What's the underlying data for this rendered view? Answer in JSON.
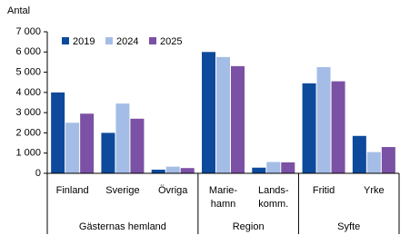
{
  "chart_data": {
    "type": "bar",
    "y_label": "Antal",
    "categories": [
      [
        "Finland"
      ],
      [
        "Sverige"
      ],
      [
        "Övriga"
      ],
      [
        "Marie-",
        "hamn"
      ],
      [
        "Lands-",
        "komm."
      ],
      [
        "Fritid"
      ],
      [
        "Yrke"
      ]
    ],
    "groups": [
      {
        "name": "Gästernas hemland",
        "size": 3
      },
      {
        "name": "Region",
        "size": 2
      },
      {
        "name": "Syfte",
        "size": 2
      }
    ],
    "series": [
      {
        "name": "2019",
        "color": "#0d4a9c",
        "values": [
          4000,
          2000,
          180,
          6000,
          280,
          4450,
          1850
        ]
      },
      {
        "name": "2024",
        "color": "#a4bde6",
        "values": [
          2500,
          3450,
          330,
          5750,
          560,
          5250,
          1050
        ]
      },
      {
        "name": "2025",
        "color": "#7b51a5",
        "values": [
          2950,
          2700,
          260,
          5300,
          540,
          4550,
          1300
        ]
      }
    ],
    "ylim": [
      0,
      7000
    ],
    "yticks": [
      0,
      {
        "value": 1000,
        "label": "1 000"
      },
      {
        "value": 2000,
        "label": "2 000"
      },
      {
        "value": 3000,
        "label": "3 000"
      },
      {
        "value": 4000,
        "label": "4 000"
      },
      {
        "value": 5000,
        "label": "5 000"
      },
      {
        "value": 6000,
        "label": "6 000"
      },
      {
        "value": 7000,
        "label": "7 000"
      }
    ],
    "legend": "top-left"
  }
}
